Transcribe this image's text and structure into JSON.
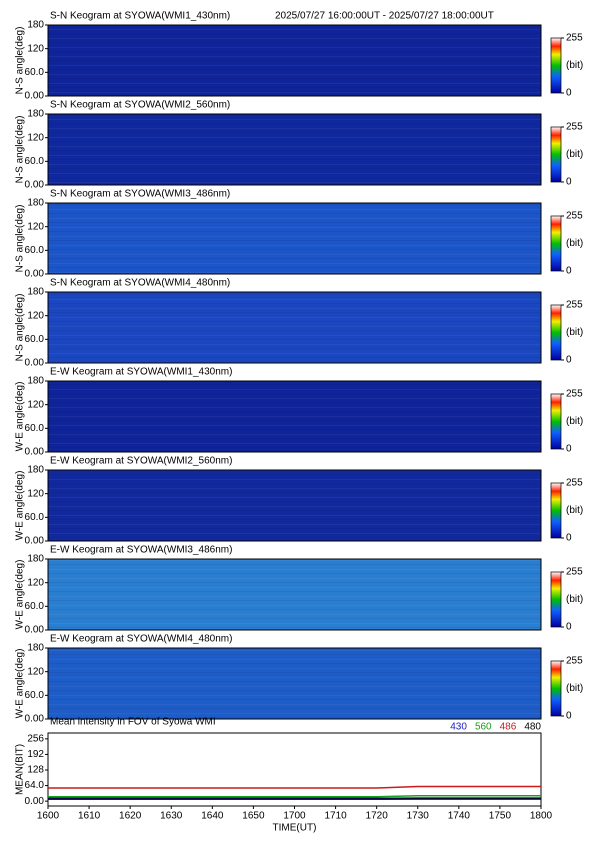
{
  "chart_data": [
    {
      "type": "heatmap",
      "title": "S-N Keogram at SYOWA(WMI1_430nm)",
      "subtitle": "2025/07/27 16:00:00UT - 2025/07/27 18:00:00UT",
      "ylabel": "N-S angle(deg)",
      "ylim": [
        0,
        180
      ],
      "yticks": [
        {
          "value": 0,
          "label": "0.00"
        },
        {
          "value": 60,
          "label": "60.0"
        },
        120,
        180
      ],
      "zlim": [
        0,
        255
      ],
      "zticks": [
        0,
        255
      ],
      "zlabel": "(bit)",
      "color": "#10249a"
    },
    {
      "type": "heatmap",
      "title": "S-N Keogram at SYOWA(WMI2_560nm)",
      "ylabel": "N-S angle(deg)",
      "ylim": [
        0,
        180
      ],
      "yticks": [
        {
          "value": 0,
          "label": "0.00"
        },
        {
          "value": 60,
          "label": "60.0"
        },
        120,
        180
      ],
      "zlim": [
        0,
        255
      ],
      "zticks": [
        0,
        255
      ],
      "zlabel": "(bit)",
      "color": "#10289e"
    },
    {
      "type": "heatmap",
      "title": "S-N Keogram at SYOWA(WMI3_486nm)",
      "ylabel": "N-S angle(deg)",
      "ylim": [
        0,
        180
      ],
      "yticks": [
        {
          "value": 0,
          "label": "0.00"
        },
        {
          "value": 60,
          "label": "60.0"
        },
        120,
        180
      ],
      "zlim": [
        0,
        255
      ],
      "zticks": [
        0,
        255
      ],
      "zlabel": "(bit)",
      "color": "#1c55c8"
    },
    {
      "type": "heatmap",
      "title": "S-N Keogram at SYOWA(WMI4_480nm)",
      "ylabel": "N-S angle(deg)",
      "ylim": [
        0,
        180
      ],
      "yticks": [
        {
          "value": 0,
          "label": "0.00"
        },
        {
          "value": 60,
          "label": "60.0"
        },
        120,
        180
      ],
      "zlim": [
        0,
        255
      ],
      "zticks": [
        0,
        255
      ],
      "zlabel": "(bit)",
      "color": "#1a46c0"
    },
    {
      "type": "heatmap",
      "title": "E-W Keogram at SYOWA(WMI1_430nm)",
      "ylabel": "W-E angle(deg)",
      "ylim": [
        0,
        180
      ],
      "yticks": [
        {
          "value": 0,
          "label": "0.00"
        },
        {
          "value": 60,
          "label": "60.0"
        },
        120,
        180
      ],
      "zlim": [
        0,
        255
      ],
      "zticks": [
        0,
        255
      ],
      "zlabel": "(bit)",
      "color": "#10249a"
    },
    {
      "type": "heatmap",
      "title": "E-W Keogram at SYOWA(WMI2_560nm)",
      "ylabel": "W-E angle(deg)",
      "ylim": [
        0,
        180
      ],
      "yticks": [
        {
          "value": 0,
          "label": "0.00"
        },
        {
          "value": 60,
          "label": "60.0"
        },
        120,
        180
      ],
      "zlim": [
        0,
        255
      ],
      "zticks": [
        0,
        255
      ],
      "zlabel": "(bit)",
      "color": "#12299e"
    },
    {
      "type": "heatmap",
      "title": "E-W Keogram at SYOWA(WMI3_486nm)",
      "ylabel": "W-E angle(deg)",
      "ylim": [
        0,
        180
      ],
      "yticks": [
        {
          "value": 0,
          "label": "0.00"
        },
        {
          "value": 60,
          "label": "60.0"
        },
        120,
        180
      ],
      "zlim": [
        0,
        255
      ],
      "zticks": [
        0,
        255
      ],
      "zlabel": "(bit)",
      "color": "#2a7ed0"
    },
    {
      "type": "heatmap",
      "title": "E-W Keogram at SYOWA(WMI4_480nm)",
      "ylabel": "W-E angle(deg)",
      "ylim": [
        0,
        180
      ],
      "yticks": [
        {
          "value": 0,
          "label": "0.00"
        },
        {
          "value": 60,
          "label": "60.0"
        },
        120,
        180
      ],
      "zlim": [
        0,
        255
      ],
      "zticks": [
        0,
        255
      ],
      "zlabel": "(bit)",
      "color": "#1e5cc8"
    },
    {
      "type": "line",
      "title": "Mean intensity in FOV of Syowa WMI",
      "xlabel": "TIME(UT)",
      "ylabel": "MEAN(BIT)",
      "categories": [
        "1600",
        "1610",
        "1620",
        "1630",
        "1640",
        "1650",
        "1700",
        "1710",
        "1720",
        "1730",
        "1740",
        "1750",
        "1800"
      ],
      "ylim": [
        -20,
        280
      ],
      "yticks": [
        {
          "value": 0,
          "label": "0.00"
        },
        {
          "value": 64,
          "label": "64.0"
        },
        128,
        192,
        256
      ],
      "series": [
        {
          "name": "430",
          "color": "#1a1acc",
          "values": [
            12,
            12,
            12,
            12,
            12,
            12,
            12,
            12,
            12,
            13,
            13,
            13,
            13
          ]
        },
        {
          "name": "560",
          "color": "#1aa01a",
          "values": [
            18,
            18,
            18,
            18,
            18,
            18,
            18,
            18,
            18,
            22,
            22,
            22,
            22
          ]
        },
        {
          "name": "486",
          "color": "#cc1a1a",
          "values": [
            54,
            54,
            54,
            54,
            54,
            54,
            54,
            54,
            54,
            60,
            60,
            60,
            60
          ]
        },
        {
          "name": "480",
          "color": "#000000",
          "values": [
            8,
            8,
            8,
            8,
            8,
            8,
            8,
            8,
            8,
            9,
            9,
            9,
            9
          ]
        }
      ]
    }
  ]
}
